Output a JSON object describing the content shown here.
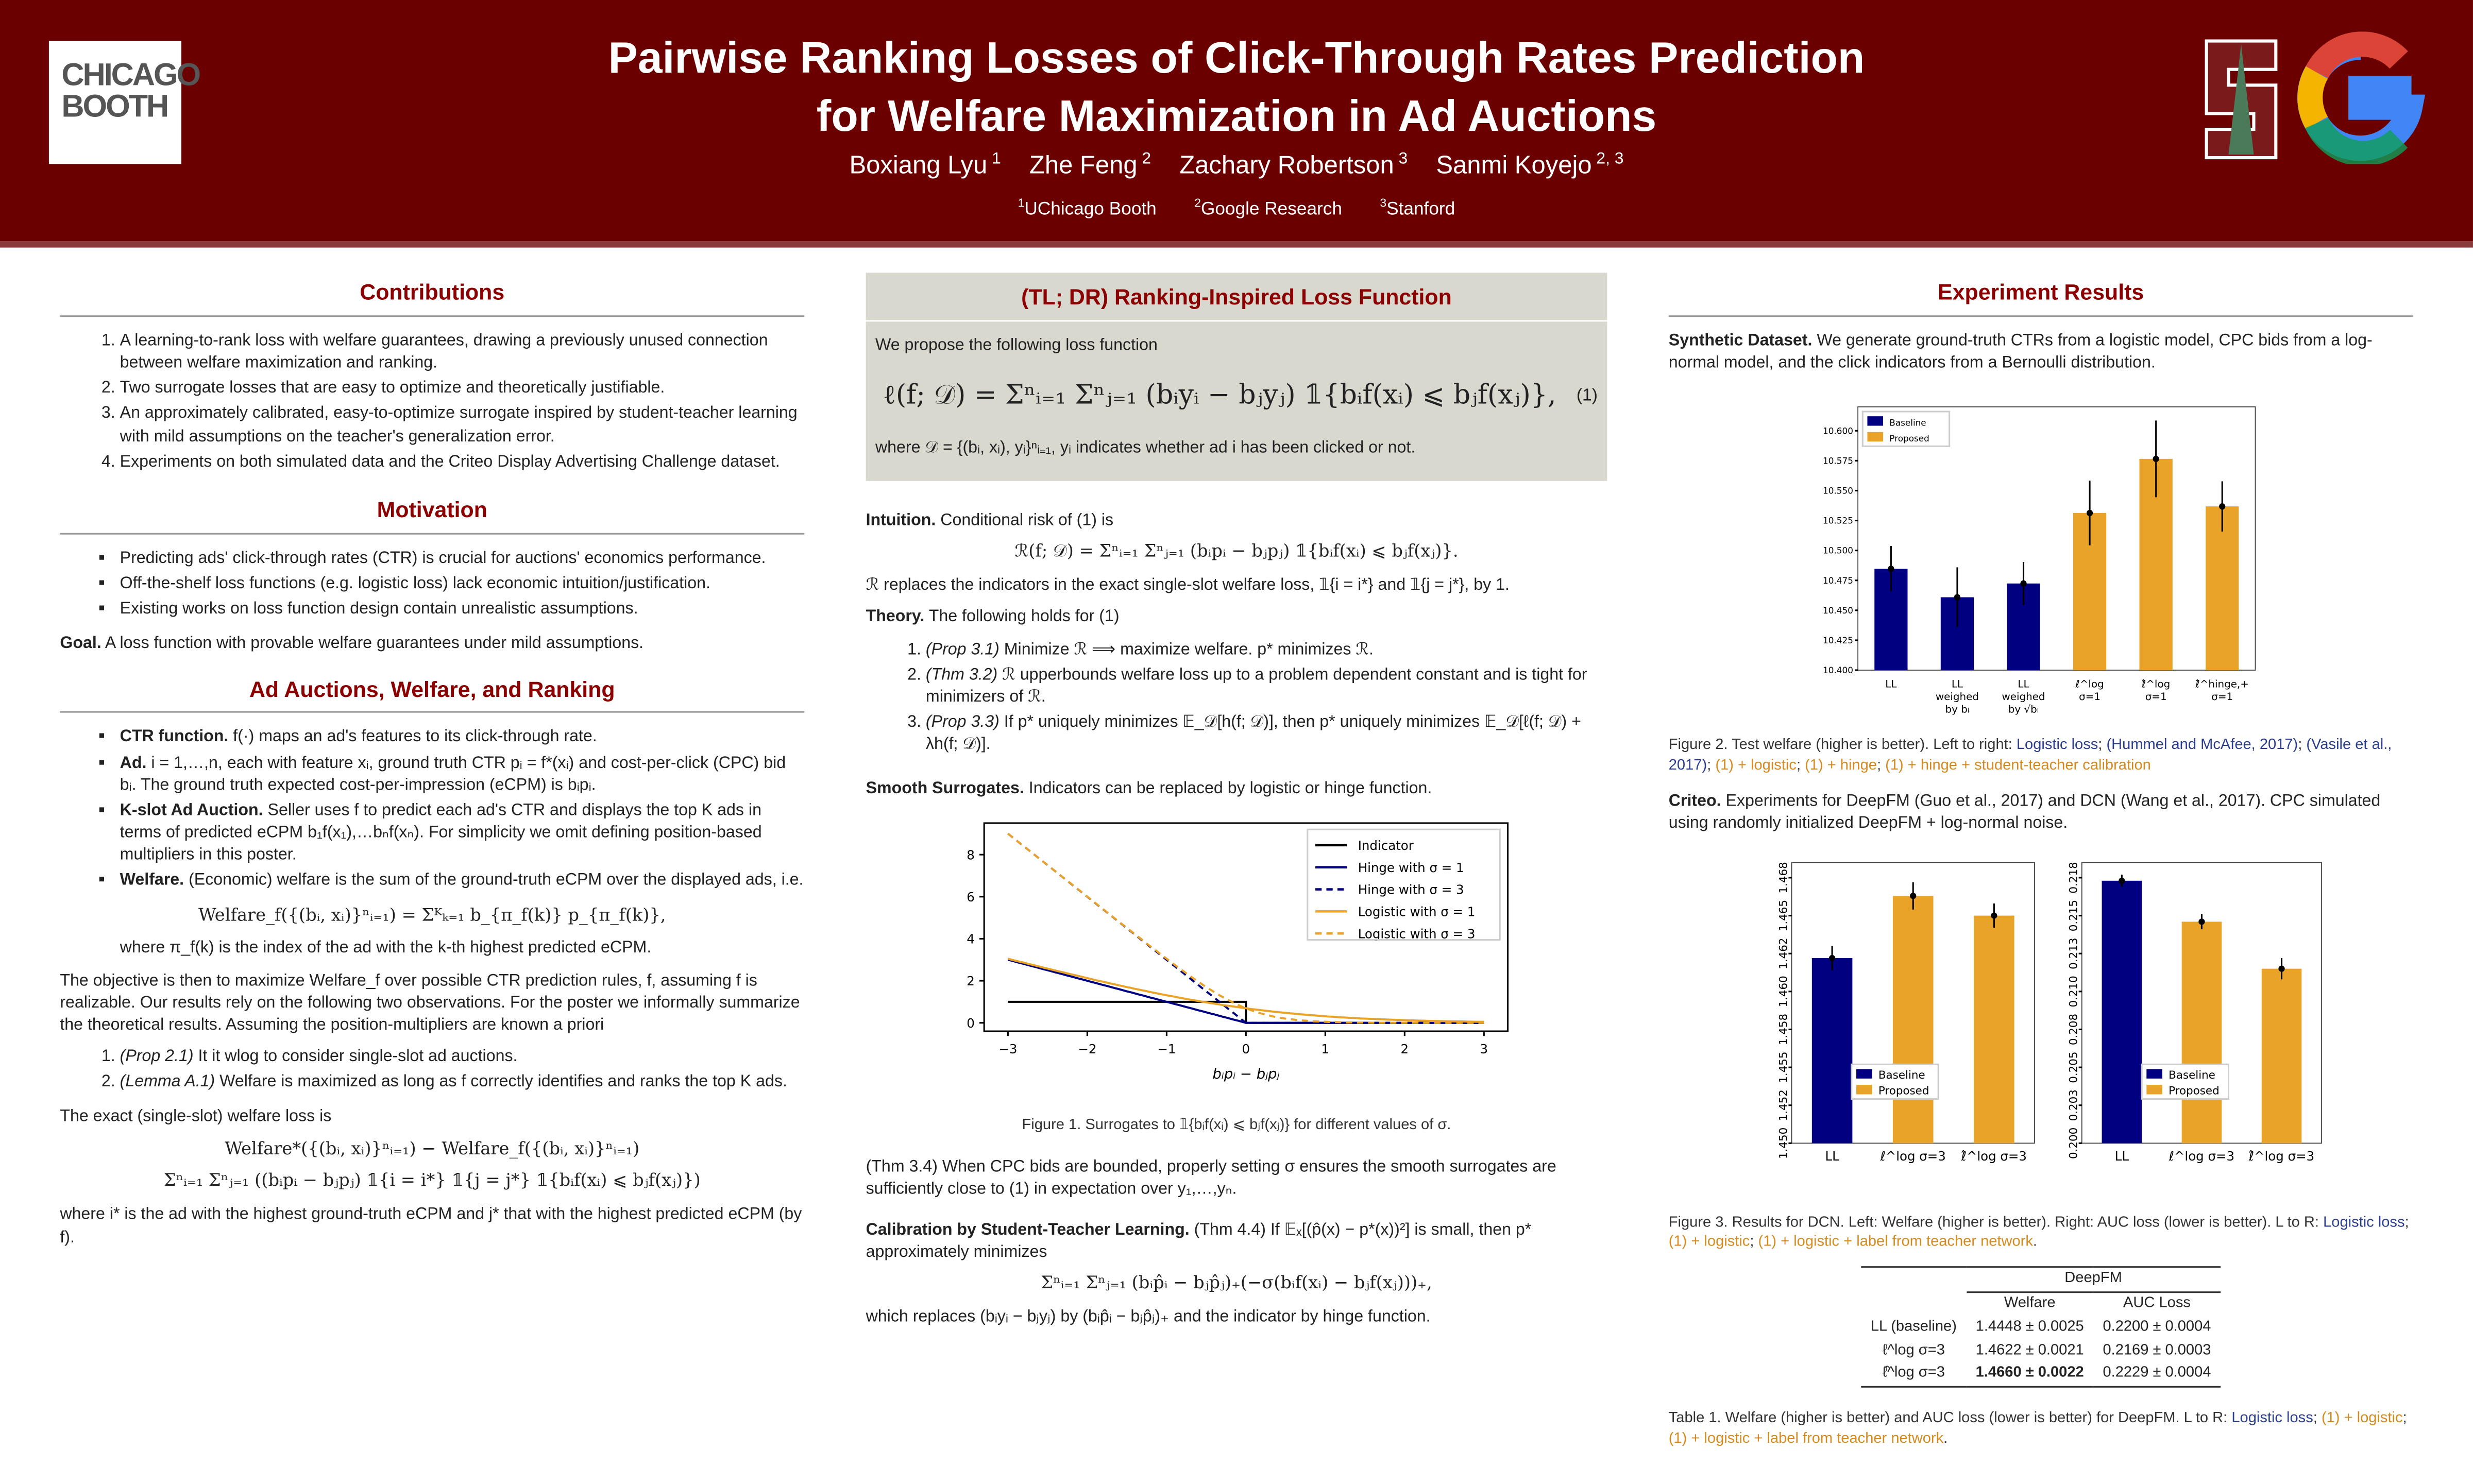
{
  "header": {
    "title_line1": "Pairwise Ranking Losses of Click-Through Rates Prediction",
    "title_line2": "for Welfare Maximization in Ad Auctions",
    "authors": [
      {
        "name": "Boxiang Lyu",
        "sup": "1"
      },
      {
        "name": "Zhe Feng",
        "sup": "2"
      },
      {
        "name": "Zachary Robertson",
        "sup": "3"
      },
      {
        "name": "Sanmi Koyejo",
        "sup": "2, 3"
      }
    ],
    "affiliations": [
      {
        "sup": "1",
        "name": "UChicago Booth"
      },
      {
        "sup": "2",
        "name": "Google Research"
      },
      {
        "sup": "3",
        "name": "Stanford"
      }
    ],
    "logos": {
      "left": "CHICAGO BOOTH",
      "right1": "Stanford S",
      "right2": "Google G"
    }
  },
  "colors": {
    "header": "#6b0000",
    "heading": "#8b0000",
    "baseline": "#000080",
    "proposed": "#e8a328",
    "tldr_bg": "#d8d8cf"
  },
  "contributions": {
    "title": "Contributions",
    "items": [
      "A learning-to-rank loss with welfare guarantees, drawing a previously unused connection between welfare maximization and ranking.",
      "Two surrogate losses that are easy to optimize and theoretically justifiable.",
      "An approximately calibrated, easy-to-optimize surrogate inspired by student-teacher learning with mild assumptions on the teacher's generalization error.",
      "Experiments on both simulated data and the Criteo Display Advertising Challenge dataset."
    ]
  },
  "motivation": {
    "title": "Motivation",
    "items": [
      "Predicting ads' click-through rates (CTR) is crucial for auctions' economics performance.",
      "Off-the-shelf loss functions (e.g. logistic loss) lack economic intuition/justification.",
      "Existing works on loss function design contain unrealistic assumptions."
    ],
    "goal_label": "Goal.",
    "goal_text": "A loss function with provable welfare guarantees under mild assumptions."
  },
  "auctions": {
    "title": "Ad Auctions, Welfare, and Ranking",
    "items": [
      {
        "label": "CTR function.",
        "text": "f(·) maps an ad's features to its click-through rate."
      },
      {
        "label": "Ad.",
        "text": "i = 1,…,n, each with feature xᵢ, ground truth CTR pᵢ = f*(xᵢ) and cost-per-click (CPC) bid bᵢ. The ground truth expected cost-per-impression (eCPM) is bᵢpᵢ."
      },
      {
        "label": "K-slot Ad Auction.",
        "text": "Seller uses f to predict each ad's CTR and displays the top K ads in terms of predicted eCPM b₁f(x₁),…bₙf(xₙ). For simplicity we omit defining position-based multipliers in this poster."
      },
      {
        "label": "Welfare.",
        "text": "(Economic) welfare is the sum of the ground-truth eCPM over the displayed ads, i.e."
      }
    ],
    "welfare_eq": "Welfare_f({(bᵢ, xᵢ)}ⁿᵢ₌₁) = Σᴷₖ₌₁ b_{π_f(k)} p_{π_f(k)},",
    "where_pi": "where π_f(k) is the index of the ad with the k-th highest predicted eCPM.",
    "objective": "The objective is then to maximize Welfare_f over possible CTR prediction rules, f, assuming f is realizable. Our results rely on the following two observations. For the poster we informally summarize the theoretical results. Assuming the position-multipliers are known a priori",
    "obs": [
      {
        "ref": "(Prop 2.1)",
        "text": "It it wlog to consider single-slot ad auctions."
      },
      {
        "ref": "(Lemma A.1)",
        "text": "Welfare is maximized as long as f correctly identifies and ranks the top K ads."
      }
    ],
    "loss_intro": "The exact (single-slot) welfare loss is",
    "loss_eq1": "Welfare*({(bᵢ, xᵢ)}ⁿᵢ₌₁) − Welfare_f({(bᵢ, xᵢ)}ⁿᵢ₌₁)",
    "loss_eq2": "Σⁿᵢ₌₁ Σⁿⱼ₌₁ ((bᵢpᵢ − bⱼpⱼ) 𝟙{i = i*} 𝟙{j = j*} 𝟙{bᵢf(xᵢ) ⩽ bⱼf(xⱼ)})",
    "loss_where": "where i* is the ad with the highest ground-truth eCPM and j* that with the highest predicted eCPM (by f)."
  },
  "tldr": {
    "title": "(TL; DR) Ranking-Inspired Loss Function",
    "intro": "We propose the following loss function",
    "eq": "ℓ(f; 𝒟) = Σⁿᵢ₌₁ Σⁿⱼ₌₁ (bᵢyᵢ − bⱼyⱼ) 𝟙{bᵢf(xᵢ) ⩽ bⱼf(xⱼ)},",
    "eq_num": "(1)",
    "where": "where 𝒟 = {(bᵢ, xᵢ), yᵢ}ⁿᵢ₌₁, yᵢ indicates whether ad i has been clicked or not."
  },
  "intuition": {
    "label": "Intuition.",
    "text": "Conditional risk of (1) is",
    "eq": "ℛ(f; 𝒟) = Σⁿᵢ₌₁ Σⁿⱼ₌₁ (bᵢpᵢ − bⱼpⱼ) 𝟙{bᵢf(xᵢ) ⩽ bⱼf(xⱼ)}.",
    "after": "ℛ replaces the indicators in the exact single-slot welfare loss, 𝟙{i = i*} and 𝟙{j = j*}, by 1."
  },
  "theory": {
    "label": "Theory.",
    "text": "The following holds for (1)",
    "items": [
      {
        "ref": "(Prop 3.1)",
        "text": "Minimize ℛ ⟹ maximize welfare. p* minimizes ℛ."
      },
      {
        "ref": "(Thm 3.2)",
        "text": "ℛ upperbounds welfare loss up to a problem dependent constant and is tight for minimizers of ℛ."
      },
      {
        "ref": "(Prop 3.3)",
        "text": "If p* uniquely minimizes 𝔼_𝒟[h(f; 𝒟)], then p* uniquely minimizes 𝔼_𝒟[ℓ(f; 𝒟) + λh(f; 𝒟)]."
      }
    ]
  },
  "smooth": {
    "label": "Smooth Surrogates.",
    "text": "Indicators can be replaced by logistic or hinge function.",
    "caption": "Figure 1. Surrogates to 𝟙{bᵢf(xᵢ) ⩽ bⱼf(xⱼ)} for different values of σ.",
    "thm": "(Thm 3.4) When CPC bids are bounded, properly setting σ ensures the smooth surrogates are sufficiently close to (1) in expectation over y₁,…,yₙ."
  },
  "calibration": {
    "label": "Calibration by Student-Teacher Learning.",
    "text": "(Thm 4.4) If 𝔼ₓ[(p̂(x) − p*(x))²] is small, then p* approximately minimizes",
    "eq": "Σⁿᵢ₌₁ Σⁿⱼ₌₁ (bᵢp̂ᵢ − bⱼp̂ⱼ)₊(−σ(bᵢf(xᵢ) − bⱼf(xⱼ)))₊,",
    "after": "which replaces (bᵢyᵢ − bⱼyⱼ) by (bᵢp̂ᵢ − bⱼp̂ⱼ)₊ and the indicator by hinge function."
  },
  "experiments": {
    "title": "Experiment Results",
    "synthetic_label": "Synthetic Dataset.",
    "synthetic_text": "We generate ground-truth CTRs from a logistic model, CPC bids from a log-normal model, and the click indicators from a Bernoulli distribution.",
    "fig2_caption": [
      "Figure 2. Test welfare (higher is better). Left to right: ",
      "Logistic loss",
      "; ",
      "(Hummel and McAfee, 2017)",
      "; ",
      "(Vasile et al., 2017)",
      "; ",
      "(1) + logistic",
      "; ",
      "(1) + hinge",
      "; ",
      "(1) + hinge + student-teacher calibration"
    ],
    "criteo_label": "Criteo.",
    "criteo_text": "Experiments for DeepFM (Guo et al., 2017) and DCN (Wang et al., 2017). CPC simulated using randomly initialized DeepFM + log-normal noise.",
    "fig3_caption": [
      "Figure 3. Results for DCN. Left: Welfare (higher is better). Right: AUC loss (lower is better). L to R: ",
      "Logistic loss",
      ";",
      "(1) + logistic",
      "; ",
      "(1) + logistic + label from teacher network",
      "."
    ],
    "table": {
      "group": "DeepFM",
      "columns": [
        "",
        "Welfare",
        "AUC Loss"
      ],
      "rows": [
        [
          "LL (baseline)",
          "1.4448 ± 0.0025",
          "0.2200 ± 0.0004"
        ],
        [
          "ℓ^log σ=3",
          "1.4622 ± 0.0021",
          "0.2169 ± 0.0003"
        ],
        [
          "ℓ̂^log σ=3",
          "1.4660 ± 0.0022",
          "0.2229 ± 0.0004"
        ]
      ],
      "bold": [
        2,
        1
      ]
    },
    "table_caption": [
      "Table 1. Welfare (higher is better) and AUC loss (lower is better) for DeepFM. L to R: ",
      "Logistic loss",
      "; ",
      "(1) + logistic",
      "; ",
      "(1) + logistic + label from teacher network",
      "."
    ]
  },
  "chart_data": [
    {
      "id": "fig1",
      "type": "line",
      "xlabel": "bᵢpᵢ − bⱼpⱼ",
      "xlim": [
        -3.3,
        3.3
      ],
      "ylim": [
        -0.4,
        9.5
      ],
      "xticks": [
        -3,
        -2,
        -1,
        0,
        1,
        2,
        3
      ],
      "yticks": [
        0,
        2,
        4,
        6,
        8
      ],
      "legend_position": "top-right",
      "series": [
        {
          "name": "Indicator",
          "fn": "indicator",
          "style": "solid",
          "color": "#000000"
        },
        {
          "name": "Hinge with σ = 1",
          "fn": "hinge",
          "sigma": 1,
          "style": "solid",
          "color": "#000080"
        },
        {
          "name": "Hinge with σ = 3",
          "fn": "hinge",
          "sigma": 3,
          "style": "dashed",
          "color": "#000080"
        },
        {
          "name": "Logistic with σ = 1",
          "fn": "logistic",
          "sigma": 1,
          "style": "solid",
          "color": "#e8a328"
        },
        {
          "name": "Logistic with σ = 3",
          "fn": "logistic",
          "sigma": 3,
          "style": "dashed",
          "color": "#e8a328"
        }
      ]
    },
    {
      "id": "fig2",
      "type": "bar",
      "ylim": [
        10.4,
        10.62
      ],
      "yticks": [
        "10.400",
        "10.425",
        "10.450",
        "10.475",
        "10.500",
        "10.525",
        "10.550",
        "10.575",
        "10.600"
      ],
      "legend_position": "top-left",
      "legend": [
        "Baseline",
        "Proposed"
      ],
      "categories": [
        "LL",
        "LL weighed by bᵢ",
        "LL weighed by √bᵢ",
        "ℓ^log σ=1",
        "ℓ̂^log σ=1",
        "ℓ̂^hinge,+ σ=1"
      ],
      "values": [
        10.4847,
        10.4609,
        10.4724,
        10.5313,
        10.5765,
        10.5368
      ],
      "errors": [
        0.019,
        0.025,
        0.018,
        0.027,
        0.032,
        0.021
      ],
      "groups": [
        "Baseline",
        "Baseline",
        "Baseline",
        "Proposed",
        "Proposed",
        "Proposed"
      ]
    },
    {
      "id": "fig3a",
      "type": "bar",
      "ylim": [
        1.45,
        1.4685
      ],
      "yticks": [
        "1.450",
        "1.452",
        "1.455",
        "1.458",
        "1.460",
        "1.462",
        "1.465",
        "1.468"
      ],
      "tickvals": [
        1.45,
        1.4525,
        1.455,
        1.4575,
        1.46,
        1.4625,
        1.465,
        1.4675
      ],
      "legend_position": "bottom-center",
      "legend": [
        "Baseline",
        "Proposed"
      ],
      "categories": [
        "LL",
        "ℓ^log σ=3",
        "ℓ̂^log σ=3"
      ],
      "values": [
        1.4622,
        1.4663,
        1.465
      ],
      "errors": [
        0.0008,
        0.0009,
        0.0008
      ],
      "groups": [
        "Baseline",
        "Proposed",
        "Proposed"
      ]
    },
    {
      "id": "fig3b",
      "type": "bar",
      "ylim": [
        0.2,
        0.2185
      ],
      "yticks": [
        "0.200",
        "0.203",
        "0.205",
        "0.208",
        "0.210",
        "0.213",
        "0.215",
        "0.218"
      ],
      "tickvals": [
        0.2,
        0.2025,
        0.205,
        0.2075,
        0.21,
        0.2125,
        0.215,
        0.2175
      ],
      "legend_position": "bottom-center",
      "legend": [
        "Baseline",
        "Proposed"
      ],
      "categories": [
        "LL",
        "ℓ^log σ=3",
        "ℓ̂^log σ=3"
      ],
      "values": [
        0.2173,
        0.2146,
        0.2115
      ],
      "errors": [
        0.0004,
        0.0005,
        0.0007
      ],
      "groups": [
        "Baseline",
        "Proposed",
        "Proposed"
      ]
    }
  ]
}
